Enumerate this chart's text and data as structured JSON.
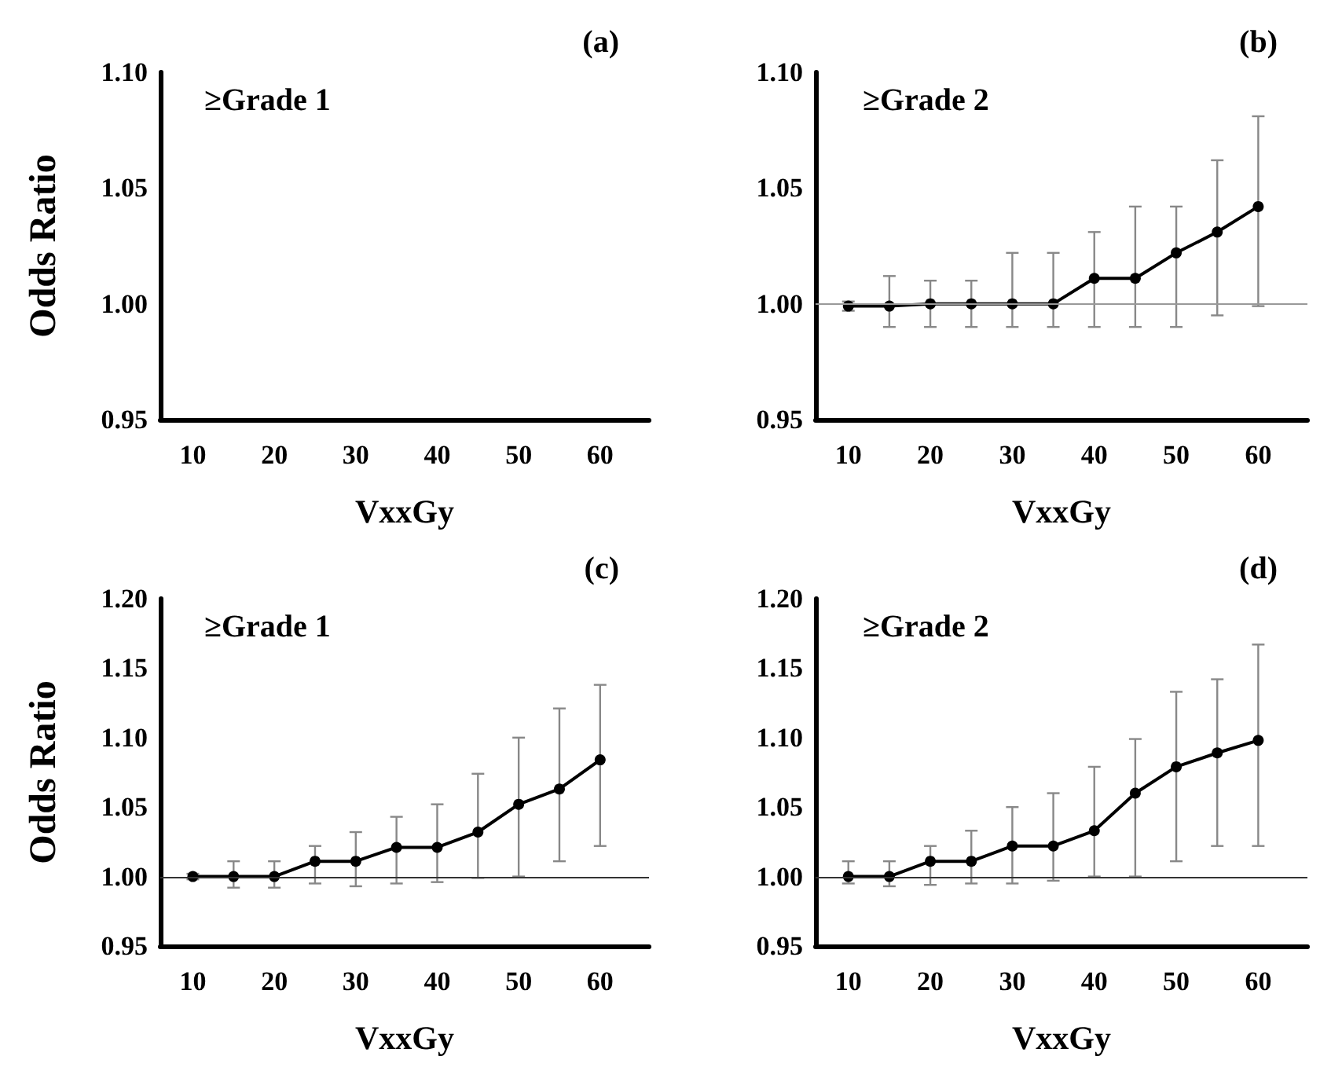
{
  "chart_data": [
    {
      "type": "line",
      "title": "(a)",
      "annotations": [
        "≥Grade 1"
      ],
      "xlabel": "VxxGy",
      "ylabel": "Odds Ratio",
      "xlim": [
        6,
        66
      ],
      "xticks": [
        10,
        20,
        30,
        40,
        50,
        60
      ],
      "ylim": [
        0.95,
        1.1
      ],
      "yticks": [
        {
          "value": 0.95,
          "label": "0.95"
        },
        {
          "value": 1.0,
          "label": "1.00"
        },
        {
          "value": 1.05,
          "label": "1.05"
        },
        {
          "value": 1.1,
          "label": "1.10"
        }
      ]
    },
    {
      "type": "line",
      "title": "(b)",
      "annotations": [
        "≥Grade 2"
      ],
      "xlabel": "VxxGy",
      "x": [
        10,
        15,
        20,
        25,
        30,
        35,
        40,
        45,
        50,
        55,
        60
      ],
      "xlim": [
        6,
        66
      ],
      "xticks": [
        10,
        20,
        30,
        40,
        50,
        60
      ],
      "ylim": [
        0.95,
        1.1
      ],
      "yticks": [
        {
          "value": 0.95,
          "label": "0.95"
        },
        {
          "value": 1.0,
          "label": "1.00"
        },
        {
          "value": 1.05,
          "label": "1.05"
        },
        {
          "value": 1.1,
          "label": "1.10"
        }
      ],
      "marker": "circle",
      "line_style": "solid",
      "ref_lines": [
        {
          "axis": "y",
          "value": 1.0,
          "color": "#999999"
        }
      ],
      "series": [
        {
          "color": "#000000",
          "values": [
            0.999,
            0.999,
            1.0,
            1.0,
            1.0,
            1.0,
            1.011,
            1.011,
            1.022,
            1.031,
            1.042
          ],
          "errors": [
            [
              0.997,
              1.001
            ],
            [
              0.99,
              1.012
            ],
            [
              0.99,
              1.01
            ],
            [
              0.99,
              1.01
            ],
            [
              0.99,
              1.022
            ],
            [
              0.99,
              1.022
            ],
            [
              0.99,
              1.031
            ],
            [
              0.99,
              1.042
            ],
            [
              0.99,
              1.042
            ],
            [
              0.995,
              1.062
            ],
            [
              0.999,
              1.081
            ]
          ]
        }
      ]
    },
    {
      "type": "line",
      "title": "(c)",
      "annotations": [
        "≥Grade 1"
      ],
      "xlabel": "VxxGy",
      "ylabel": "Odds Ratio",
      "x": [
        10,
        15,
        20,
        25,
        30,
        35,
        40,
        45,
        50,
        55,
        60
      ],
      "xlim": [
        6,
        66
      ],
      "xticks": [
        10,
        20,
        30,
        40,
        50,
        60
      ],
      "ylim": [
        0.95,
        1.2
      ],
      "yticks": [
        {
          "value": 0.95,
          "label": "0.95"
        },
        {
          "value": 1.0,
          "label": "1.00"
        },
        {
          "value": 1.05,
          "label": "1.05"
        },
        {
          "value": 1.1,
          "label": "1.10"
        },
        {
          "value": 1.15,
          "label": "1.15"
        },
        {
          "value": 1.2,
          "label": "1.20"
        }
      ],
      "marker": "circle",
      "line_style": "solid",
      "ref_lines": [
        {
          "axis": "y",
          "value": 1.0,
          "color": "#333333"
        }
      ],
      "series": [
        {
          "color": "#000000",
          "values": [
            1.0,
            1.0,
            1.0,
            1.011,
            1.011,
            1.021,
            1.021,
            1.032,
            1.052,
            1.063,
            1.084
          ],
          "errors": [
            [
              0.998,
              1.002
            ],
            [
              0.992,
              1.011
            ],
            [
              0.992,
              1.011
            ],
            [
              0.995,
              1.022
            ],
            [
              0.993,
              1.032
            ],
            [
              0.995,
              1.043
            ],
            [
              0.996,
              1.052
            ],
            [
              0.999,
              1.074
            ],
            [
              1.0,
              1.1
            ],
            [
              1.011,
              1.121
            ],
            [
              1.022,
              1.138
            ]
          ]
        }
      ]
    },
    {
      "type": "line",
      "title": "(d)",
      "annotations": [
        "≥Grade 2"
      ],
      "xlabel": "VxxGy",
      "x": [
        10,
        15,
        20,
        25,
        30,
        35,
        40,
        45,
        50,
        55,
        60
      ],
      "xlim": [
        6,
        66
      ],
      "xticks": [
        10,
        20,
        30,
        40,
        50,
        60
      ],
      "ylim": [
        0.95,
        1.2
      ],
      "yticks": [
        {
          "value": 0.95,
          "label": "0.95"
        },
        {
          "value": 1.0,
          "label": "1.00"
        },
        {
          "value": 1.05,
          "label": "1.05"
        },
        {
          "value": 1.1,
          "label": "1.10"
        },
        {
          "value": 1.15,
          "label": "1.15"
        },
        {
          "value": 1.2,
          "label": "1.20"
        }
      ],
      "marker": "circle",
      "line_style": "solid",
      "ref_lines": [
        {
          "axis": "y",
          "value": 1.0,
          "color": "#333333"
        }
      ],
      "series": [
        {
          "color": "#000000",
          "values": [
            1.0,
            1.0,
            1.011,
            1.011,
            1.022,
            1.022,
            1.033,
            1.06,
            1.079,
            1.089,
            1.098
          ],
          "errors": [
            [
              0.995,
              1.011
            ],
            [
              0.993,
              1.011
            ],
            [
              0.994,
              1.022
            ],
            [
              0.995,
              1.033
            ],
            [
              0.995,
              1.05
            ],
            [
              0.997,
              1.06
            ],
            [
              1.0,
              1.079
            ],
            [
              1.0,
              1.099
            ],
            [
              1.011,
              1.133
            ],
            [
              1.022,
              1.142
            ],
            [
              1.022,
              1.167
            ]
          ]
        }
      ]
    }
  ]
}
